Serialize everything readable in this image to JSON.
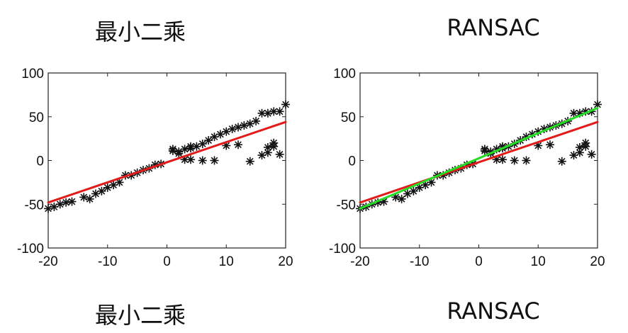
{
  "chart_data": [
    {
      "type": "scatter",
      "title_top": "最小二乘",
      "title_bottom": "最小二乘",
      "xlim": [
        -20,
        20
      ],
      "ylim": [
        -100,
        100
      ],
      "xticks": [
        -20,
        -10,
        0,
        10,
        20
      ],
      "yticks": [
        100,
        50,
        0,
        -50,
        -100
      ],
      "grid": false,
      "points": [
        [
          -20,
          -55
        ],
        [
          -19,
          -53
        ],
        [
          -18,
          -50
        ],
        [
          -17,
          -48
        ],
        [
          -16,
          -47
        ],
        [
          -14,
          -42
        ],
        [
          -13,
          -44
        ],
        [
          -12,
          -38
        ],
        [
          -11,
          -35
        ],
        [
          -10,
          -31
        ],
        [
          -9,
          -28
        ],
        [
          -8,
          -25
        ],
        [
          -7,
          -17
        ],
        [
          -6,
          -17
        ],
        [
          -5,
          -14
        ],
        [
          -4,
          -11
        ],
        [
          -3,
          -9
        ],
        [
          -2,
          -5
        ],
        [
          -1,
          -4
        ],
        [
          1,
          13
        ],
        [
          1,
          11
        ],
        [
          2,
          10
        ],
        [
          2,
          8
        ],
        [
          3,
          13
        ],
        [
          4,
          14
        ],
        [
          4,
          16
        ],
        [
          5,
          16
        ],
        [
          6,
          19
        ],
        [
          7,
          23
        ],
        [
          8,
          27
        ],
        [
          9,
          30
        ],
        [
          10,
          33
        ],
        [
          11,
          36
        ],
        [
          12,
          38
        ],
        [
          13,
          40
        ],
        [
          14,
          42
        ],
        [
          15,
          45
        ],
        [
          16,
          54
        ],
        [
          17,
          54
        ],
        [
          18,
          56
        ],
        [
          19,
          56
        ],
        [
          20,
          64
        ],
        [
          3,
          1
        ],
        [
          4,
          1
        ],
        [
          6,
          0
        ],
        [
          8,
          0
        ],
        [
          10,
          17
        ],
        [
          12,
          18
        ],
        [
          14,
          -1
        ],
        [
          16,
          6
        ],
        [
          17,
          15
        ],
        [
          18,
          20
        ],
        [
          18,
          16
        ],
        [
          17,
          9
        ],
        [
          19,
          7
        ]
      ],
      "fit_lines": [
        {
          "color": "#e21a1a",
          "x": [
            -20,
            20
          ],
          "y": [
            -48,
            44
          ]
        }
      ]
    },
    {
      "type": "scatter",
      "title_top": "RANSAC",
      "title_bottom": "RANSAC",
      "xlim": [
        -20,
        20
      ],
      "ylim": [
        -100,
        100
      ],
      "xticks": [
        -20,
        -10,
        0,
        10,
        20
      ],
      "yticks": [
        100,
        50,
        0,
        -50,
        -100
      ],
      "grid": false,
      "points": [
        [
          -20,
          -55
        ],
        [
          -19,
          -53
        ],
        [
          -18,
          -50
        ],
        [
          -17,
          -48
        ],
        [
          -16,
          -47
        ],
        [
          -14,
          -42
        ],
        [
          -13,
          -44
        ],
        [
          -12,
          -38
        ],
        [
          -11,
          -35
        ],
        [
          -10,
          -31
        ],
        [
          -9,
          -28
        ],
        [
          -8,
          -25
        ],
        [
          -7,
          -17
        ],
        [
          -6,
          -17
        ],
        [
          -5,
          -14
        ],
        [
          -4,
          -11
        ],
        [
          -3,
          -9
        ],
        [
          -2,
          -5
        ],
        [
          -1,
          -4
        ],
        [
          1,
          13
        ],
        [
          1,
          11
        ],
        [
          2,
          10
        ],
        [
          2,
          8
        ],
        [
          3,
          13
        ],
        [
          4,
          14
        ],
        [
          4,
          16
        ],
        [
          5,
          16
        ],
        [
          6,
          19
        ],
        [
          7,
          23
        ],
        [
          8,
          27
        ],
        [
          9,
          30
        ],
        [
          10,
          33
        ],
        [
          11,
          36
        ],
        [
          12,
          38
        ],
        [
          13,
          40
        ],
        [
          14,
          42
        ],
        [
          15,
          45
        ],
        [
          16,
          54
        ],
        [
          17,
          54
        ],
        [
          18,
          56
        ],
        [
          19,
          56
        ],
        [
          20,
          64
        ],
        [
          3,
          1
        ],
        [
          4,
          1
        ],
        [
          6,
          0
        ],
        [
          8,
          0
        ],
        [
          10,
          17
        ],
        [
          12,
          18
        ],
        [
          14,
          -1
        ],
        [
          16,
          6
        ],
        [
          17,
          15
        ],
        [
          18,
          20
        ],
        [
          18,
          16
        ],
        [
          17,
          9
        ],
        [
          19,
          7
        ]
      ],
      "fit_lines": [
        {
          "color": "#e21a1a",
          "x": [
            -20,
            20
          ],
          "y": [
            -48,
            44
          ]
        },
        {
          "color": "#22dd22",
          "x": [
            -20,
            20
          ],
          "y": [
            -55,
            60
          ]
        }
      ]
    }
  ]
}
